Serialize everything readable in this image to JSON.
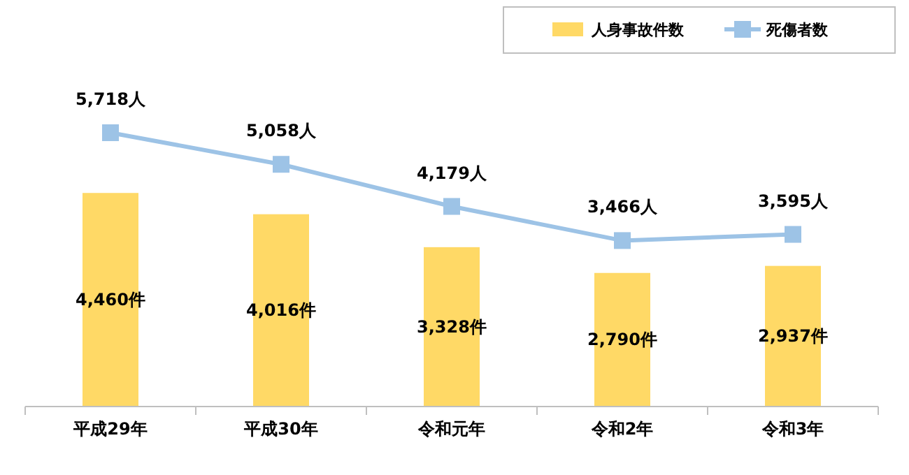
{
  "chart_data": {
    "type": "bar",
    "categories": [
      "平成29年",
      "平成30年",
      "令和元年",
      "令和2年",
      "令和3年"
    ],
    "series": [
      {
        "name": "人身事故件数",
        "color": "#ffd966",
        "values": [
          4460,
          4016,
          3328,
          2790,
          2937
        ],
        "value_labels": [
          "4,460件",
          "4,016件",
          "3,328件",
          "2,790件",
          "2,937件"
        ]
      },
      {
        "name": "死傷者数",
        "type": "line",
        "color": "#9dc3e6",
        "values": [
          5718,
          5058,
          4179,
          3466,
          3595
        ],
        "value_labels": [
          "5,718人",
          "5,058人",
          "4,179人",
          "3,466人",
          "3,595人"
        ]
      }
    ],
    "legend": "top right",
    "marker": "square"
  }
}
